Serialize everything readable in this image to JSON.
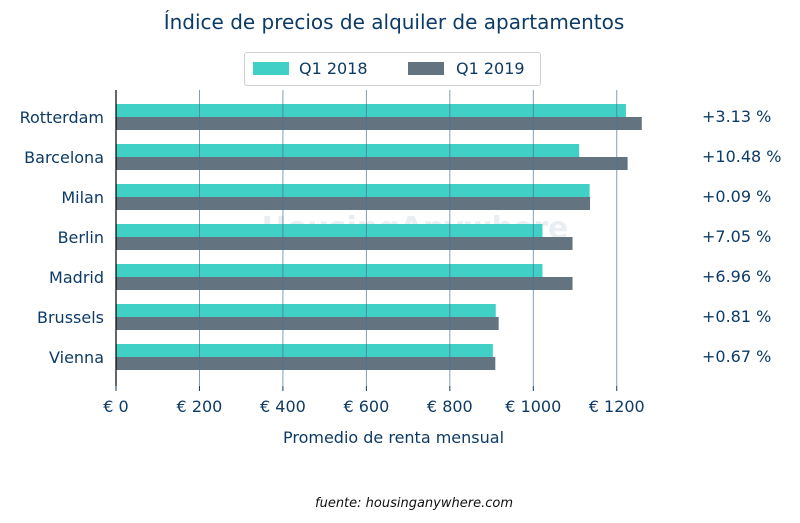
{
  "chart_data": {
    "type": "bar",
    "orientation": "horizontal",
    "title": "Índice de precios de alquiler de apartamentos",
    "xlabel": "Promedio de renta mensual",
    "ylabel": "",
    "xlim": [
      0,
      1330
    ],
    "xticks": [
      0,
      200,
      400,
      600,
      800,
      1000,
      1200
    ],
    "xtick_labels": [
      "€ 0",
      "€ 200",
      "€ 400",
      "€ 600",
      "€ 800",
      "€ 1000",
      "€ 1200"
    ],
    "categories": [
      "Rotterdam",
      "Barcelona",
      "Milan",
      "Berlin",
      "Madrid",
      "Brussels",
      "Vienna"
    ],
    "series": [
      {
        "name": "Q1 2018",
        "color": "#40d0c5",
        "values": [
          1222,
          1110,
          1135,
          1022,
          1022,
          910,
          903
        ]
      },
      {
        "name": "Q1 2019",
        "color": "#637380",
        "values": [
          1260,
          1226,
          1136,
          1094,
          1094,
          917,
          909
        ]
      }
    ],
    "change_labels": [
      "+3.13 %",
      "+10.48 %",
      "+0.09 %",
      "+7.05 %",
      "+6.96 %",
      "+0.81 %",
      "+0.67 %"
    ],
    "grid": "vertical",
    "legend": "top-center",
    "watermark": "HousingAnywhere",
    "source": "fuente: housinganywhere.com"
  }
}
